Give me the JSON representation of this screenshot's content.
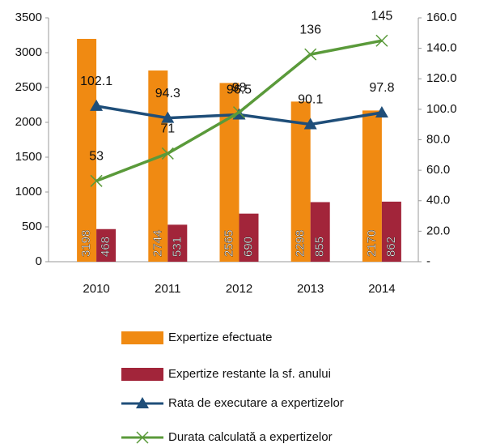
{
  "chart_data": {
    "type": "bar",
    "categories": [
      "2010",
      "2011",
      "2012",
      "2013",
      "2014"
    ],
    "series": [
      {
        "name": "Expertize efectuate",
        "type": "bar",
        "color": "#f08a12",
        "values": [
          3198,
          2744,
          2565,
          2298,
          2170
        ]
      },
      {
        "name": "Expertize restante la sf. anului",
        "type": "bar",
        "color": "#a2253a",
        "values": [
          468,
          531,
          690,
          855,
          862
        ]
      },
      {
        "name": "Rata de executare a expertizelor",
        "type": "line",
        "axis": "y2",
        "marker": "triangle",
        "color": "#1f4e79",
        "values": [
          102.1,
          94.3,
          96.5,
          90.1,
          97.8
        ]
      },
      {
        "name": "Durata calculată a expertizelor",
        "type": "line",
        "axis": "y2",
        "marker": "x",
        "color": "#5a9a3a",
        "values": [
          53,
          71,
          98,
          136,
          145
        ]
      }
    ],
    "ylim": [
      0,
      3500
    ],
    "yticks": [
      0,
      500,
      1000,
      1500,
      2000,
      2500,
      3000,
      3500
    ],
    "y2lim": [
      0,
      160
    ],
    "y2ticks": [
      {
        "value": 0,
        "label": "-"
      },
      {
        "value": 20,
        "label": "20.0"
      },
      {
        "value": 40,
        "label": "40.0"
      },
      {
        "value": 60,
        "label": "60.0"
      },
      {
        "value": 80,
        "label": "80.0"
      },
      {
        "value": 100,
        "label": "100.0"
      },
      {
        "value": 120,
        "label": "120.0"
      },
      {
        "value": 140,
        "label": "140.0"
      },
      {
        "value": 160,
        "label": "160.0"
      }
    ],
    "grid": false,
    "legend": "bottom"
  }
}
